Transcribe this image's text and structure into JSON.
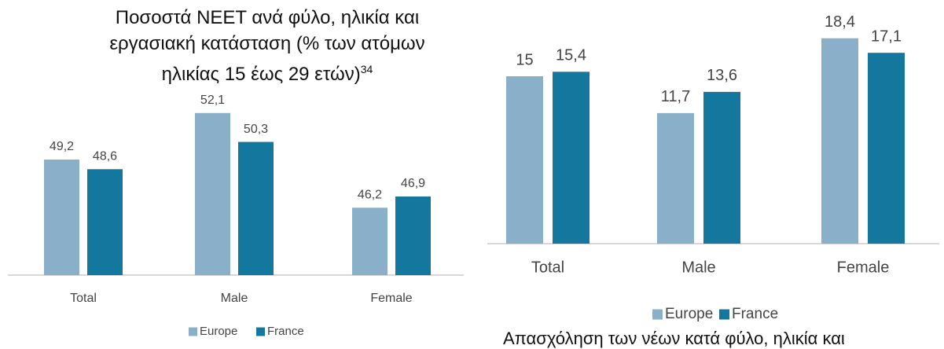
{
  "chart_data": [
    {
      "type": "bar",
      "title": "Ποσοστά NEET ανά φύλο, ηλικία και εργασιακή κατάσταση (% των ατόμων ηλικίας 15 έως 29 ετών)",
      "title_superscript": "34",
      "categories": [
        "Total",
        "Male",
        "Female"
      ],
      "series": [
        {
          "name": "Europe",
          "color": "#8aafc8",
          "values": [
            49.2,
            52.1,
            46.2
          ],
          "value_labels": [
            "49,2",
            "52,1",
            "46,2"
          ]
        },
        {
          "name": "France",
          "color": "#14789e",
          "values": [
            48.6,
            50.3,
            46.9
          ],
          "value_labels": [
            "48,6",
            "50,3",
            "46,9"
          ]
        }
      ],
      "ylim": [
        42,
        54
      ],
      "grid": false,
      "legend": "bottom"
    },
    {
      "type": "bar",
      "caption": "Απασχόληση των νέων κατά φύλο, ηλικία και",
      "categories": [
        "Total",
        "Male",
        "Female"
      ],
      "series": [
        {
          "name": "Europe",
          "color": "#8aafc8",
          "values": [
            15,
            11.7,
            18.4
          ],
          "value_labels": [
            "15",
            "11,7",
            "18,4"
          ]
        },
        {
          "name": "France",
          "color": "#14789e",
          "values": [
            15.4,
            13.6,
            17.1
          ],
          "value_labels": [
            "15,4",
            "13,6",
            "17,1"
          ]
        }
      ],
      "ylim": [
        0,
        20
      ],
      "grid": false,
      "legend": "bottom"
    }
  ]
}
